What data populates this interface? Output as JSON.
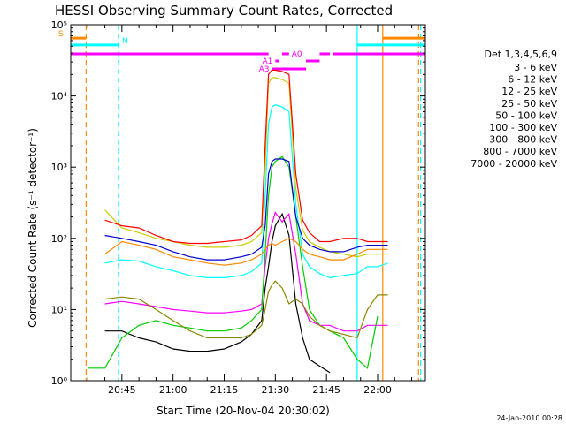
{
  "chart_data": {
    "type": "line",
    "title": "HESSI Observing Summary Count Rates, Corrected",
    "xlabel": "Start Time (20-Nov-04 20:30:02)",
    "ylabel": "Corrected Count Rate (s⁻¹ detector⁻¹)",
    "timestamp": "24-Jan-2010 00:28",
    "x_unit": "minutes after 20:30:02",
    "xlim": [
      0,
      104
    ],
    "ylim": [
      1,
      100000
    ],
    "yscale": "log",
    "x_ticks": [
      {
        "value": 15,
        "label": "20:45"
      },
      {
        "value": 30,
        "label": "21:00"
      },
      {
        "value": 45,
        "label": "21:15"
      },
      {
        "value": 60,
        "label": "21:30"
      },
      {
        "value": 75,
        "label": "21:45"
      },
      {
        "value": 90,
        "label": "22:00"
      }
    ],
    "y_ticks": [
      {
        "value": 1,
        "label": "10⁰"
      },
      {
        "value": 10,
        "label": "10¹"
      },
      {
        "value": 100,
        "label": "10²"
      },
      {
        "value": 1000,
        "label": "10³"
      },
      {
        "value": 10000,
        "label": "10⁴"
      },
      {
        "value": 100000,
        "label": "10⁵"
      }
    ],
    "legend_title": "Det 1,3,4,5,6,9",
    "legend_placement": "right",
    "x": [
      5,
      10,
      15,
      20,
      25,
      30,
      35,
      40,
      45,
      50,
      53,
      56,
      57,
      58,
      59,
      60,
      62,
      64,
      66,
      68,
      70,
      73,
      76,
      80,
      84,
      87,
      90,
      93
    ],
    "series": [
      {
        "name": "3 - 6 keV",
        "color": "#000000",
        "values": [
          null,
          5,
          5,
          4,
          3.5,
          2.8,
          2.6,
          2.6,
          2.8,
          3.5,
          4.5,
          7,
          20,
          40,
          90,
          150,
          220,
          110,
          12,
          4,
          2,
          1.6,
          1.3,
          null,
          null,
          null,
          null,
          null
        ]
      },
      {
        "name": "6 - 12 keV",
        "color": "#ff00ff",
        "values": [
          null,
          12,
          13,
          12,
          11,
          10,
          9.5,
          9,
          9,
          9.5,
          10,
          12,
          40,
          100,
          160,
          230,
          170,
          220,
          60,
          12,
          7,
          6,
          6,
          5,
          5,
          6,
          6,
          6
        ]
      },
      {
        "name": "12 - 25 keV",
        "color": "#00cc00",
        "values": [
          1.5,
          1.5,
          4,
          6,
          7,
          6,
          5.5,
          5,
          5,
          5.5,
          7,
          10,
          60,
          400,
          1000,
          1200,
          1400,
          1000,
          200,
          40,
          10,
          6,
          5,
          4,
          2,
          1.5,
          8,
          null
        ]
      },
      {
        "name": "25 - 50 keV",
        "color": "#00ffff",
        "values": [
          null,
          45,
          50,
          48,
          40,
          35,
          30,
          28,
          28,
          30,
          34,
          45,
          400,
          4000,
          7000,
          7500,
          7000,
          6000,
          300,
          60,
          40,
          32,
          28,
          30,
          32,
          40,
          40,
          45
        ]
      },
      {
        "name": "50 - 100 keV",
        "color": "#cccc00",
        "values": [
          null,
          250,
          140,
          120,
          100,
          90,
          80,
          75,
          75,
          80,
          90,
          120,
          1000,
          15000,
          18000,
          18000,
          17000,
          15000,
          500,
          130,
          90,
          75,
          65,
          60,
          55,
          60,
          60,
          60
        ]
      },
      {
        "name": "100 - 300 keV",
        "color": "#ff0000",
        "values": [
          null,
          180,
          150,
          140,
          110,
          90,
          85,
          85,
          90,
          95,
          110,
          150,
          2000,
          20000,
          23000,
          23000,
          22000,
          20000,
          800,
          180,
          120,
          90,
          90,
          100,
          100,
          90,
          90,
          90
        ]
      },
      {
        "name": "300 - 800 keV",
        "color": "#0000cc",
        "values": [
          null,
          110,
          100,
          90,
          80,
          65,
          55,
          50,
          50,
          55,
          60,
          75,
          150,
          800,
          1200,
          1300,
          1300,
          1200,
          200,
          100,
          80,
          70,
          65,
          65,
          75,
          80,
          80,
          80
        ]
      },
      {
        "name": "800 - 7000 keV",
        "color": "#ff8800",
        "values": [
          null,
          60,
          90,
          80,
          70,
          55,
          50,
          45,
          42,
          45,
          50,
          60,
          70,
          80,
          85,
          80,
          90,
          100,
          90,
          70,
          60,
          55,
          50,
          50,
          60,
          70,
          70,
          70
        ]
      },
      {
        "name": "7000 - 20000 keV",
        "color": "#888800",
        "values": [
          null,
          14,
          15,
          14,
          10,
          7,
          5,
          4,
          4,
          4,
          4.5,
          6,
          10,
          18,
          22,
          25,
          20,
          12,
          14,
          12,
          8,
          6,
          5,
          4.5,
          4,
          10,
          16,
          16
        ]
      }
    ],
    "annotations": [
      {
        "label": "S",
        "color": "#ff8800",
        "x_start": 0,
        "x_end": 4.5,
        "y": 65000
      },
      {
        "label": "",
        "color": "#ff8800",
        "x_start": 91.5,
        "x_end": 104,
        "y": 65000
      },
      {
        "label": "N",
        "color": "#00ffff",
        "x_start": 0,
        "x_end": 14,
        "y": 52000
      },
      {
        "label": "",
        "color": "#00ffff",
        "x_start": 84,
        "x_end": 104,
        "y": 52000
      },
      {
        "label": "",
        "color": "#ff00ff",
        "x_start": 0,
        "x_end": 58,
        "y": 39000
      },
      {
        "label": "A0",
        "color": "#ff00ff",
        "x_start": 62,
        "x_end": 64,
        "y": 39000
      },
      {
        "label": "A1",
        "color": "#ff00ff",
        "x_start": 60,
        "x_end": 61,
        "y": 31000
      },
      {
        "label": "A3",
        "color": "#ff00ff",
        "x_start": 59,
        "x_end": 69,
        "y": 24000
      },
      {
        "label": "",
        "color": "#ff00ff",
        "x_start": 69,
        "x_end": 73,
        "y": 31000
      },
      {
        "label": "",
        "color": "#ff00ff",
        "x_start": 73,
        "x_end": 76,
        "y": 39000
      },
      {
        "label": "",
        "color": "#ff00ff",
        "x_start": 77,
        "x_end": 104,
        "y": 39000
      }
    ],
    "vertical_markers": [
      {
        "x": 4.5,
        "color": "#ff8800",
        "style": "dashed"
      },
      {
        "x": 14,
        "color": "#00ffff",
        "style": "dashed"
      },
      {
        "x": 84,
        "color": "#00ffff",
        "style": "solid"
      },
      {
        "x": 91.5,
        "color": "#ff8800",
        "style": "solid"
      },
      {
        "x": 102,
        "color": "#ff8800",
        "style": "dashed"
      },
      {
        "x": 102.6,
        "color": "#00ffff",
        "style": "dashed"
      }
    ]
  }
}
